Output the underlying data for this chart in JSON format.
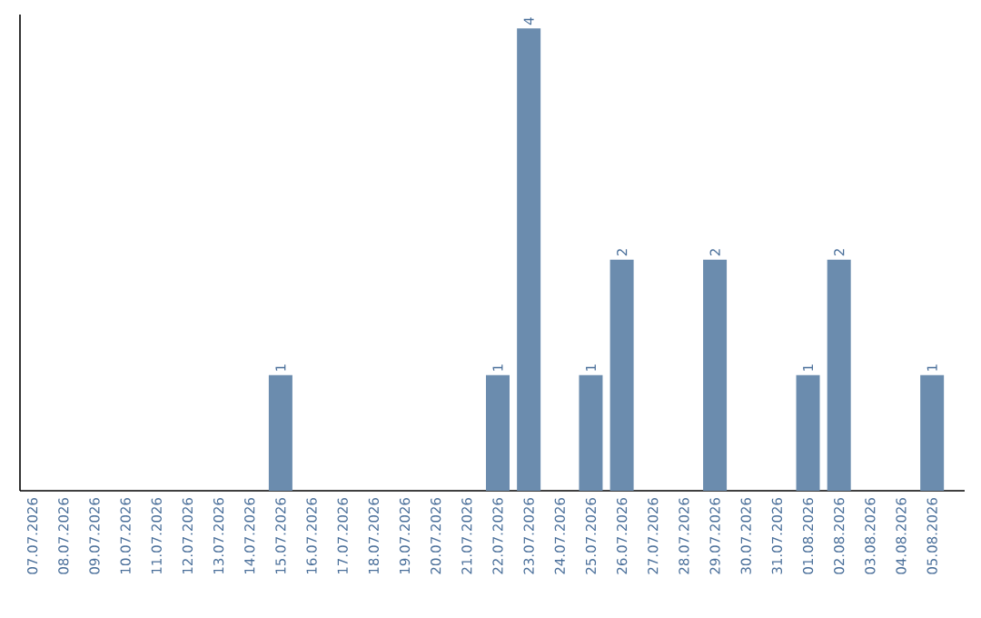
{
  "chart_data": {
    "type": "bar",
    "categories": [
      "07.07.2026",
      "08.07.2026",
      "09.07.2026",
      "10.07.2026",
      "11.07.2026",
      "12.07.2026",
      "13.07.2026",
      "14.07.2026",
      "15.07.2026",
      "16.07.2026",
      "17.07.2026",
      "18.07.2026",
      "19.07.2026",
      "20.07.2026",
      "21.07.2026",
      "22.07.2026",
      "23.07.2026",
      "24.07.2026",
      "25.07.2026",
      "26.07.2026",
      "27.07.2026",
      "28.07.2026",
      "29.07.2026",
      "30.07.2026",
      "31.07.2026",
      "01.08.2026",
      "02.08.2026",
      "03.08.2026",
      "04.08.2026",
      "05.08.2026"
    ],
    "values": [
      0,
      0,
      0,
      0,
      0,
      0,
      0,
      0,
      1,
      0,
      0,
      0,
      0,
      0,
      0,
      1,
      4,
      0,
      1,
      2,
      0,
      0,
      2,
      0,
      0,
      1,
      2,
      0,
      0,
      1
    ],
    "value_labels": [
      null,
      null,
      null,
      null,
      null,
      null,
      null,
      null,
      "1",
      null,
      null,
      null,
      null,
      null,
      null,
      "1",
      "4",
      null,
      "1",
      "2",
      null,
      null,
      "2",
      null,
      null,
      "1",
      "2",
      null,
      null,
      "1"
    ],
    "color": "#6b8cae"
  }
}
